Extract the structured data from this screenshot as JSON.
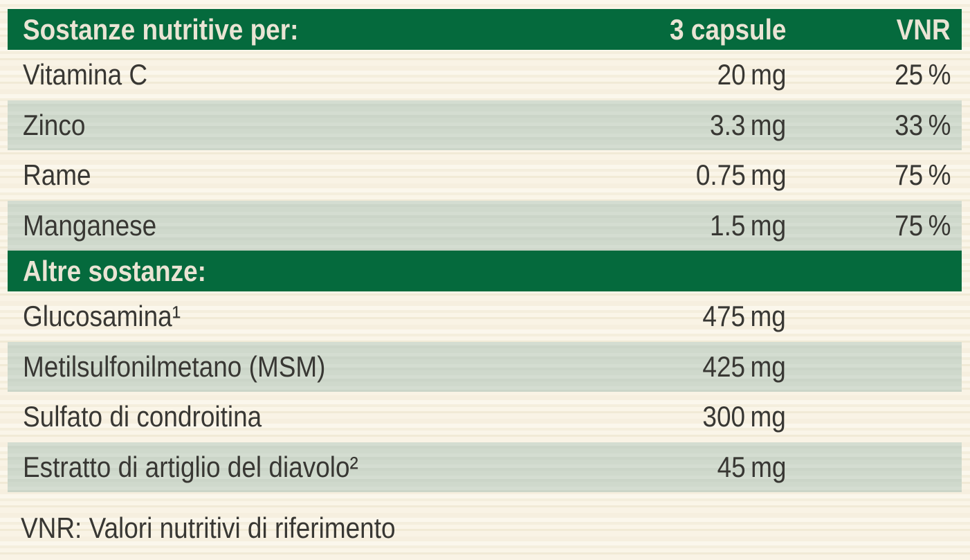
{
  "colors": {
    "header_green": "#056a3d",
    "row_light_green": "#cfd9cc",
    "background_cream": "#faf5e8",
    "header_text": "#eae4d4",
    "body_text": "#383733"
  },
  "label": {
    "header": {
      "col_substances": "Sostanze nutritive per:",
      "col_amount": "3 capsule",
      "col_vnr": "VNR"
    },
    "section1": {
      "rows": [
        {
          "name": "Vitamina C",
          "amount": "20 mg",
          "vnr": "25 %"
        },
        {
          "name": "Zinco",
          "amount": "3.3 mg",
          "vnr": "33 %"
        },
        {
          "name": "Rame",
          "amount": "0.75 mg",
          "vnr": "75 %"
        },
        {
          "name": "Manganese",
          "amount": "1.5 mg",
          "vnr": "75 %"
        }
      ]
    },
    "section2_header": "Altre sostanze:",
    "section2": {
      "rows": [
        {
          "name": "Glucosamina¹",
          "amount": "475 mg",
          "vnr": ""
        },
        {
          "name": "Metilsulfonilmetano (MSM)",
          "amount": "425 mg",
          "vnr": ""
        },
        {
          "name": "Sulfato di condroitina",
          "amount": "300 mg",
          "vnr": ""
        },
        {
          "name": "Estratto di artiglio del diavolo²",
          "amount": "45 mg",
          "vnr": ""
        }
      ]
    },
    "footnote": "VNR: Valori nutritivi di riferimento"
  }
}
